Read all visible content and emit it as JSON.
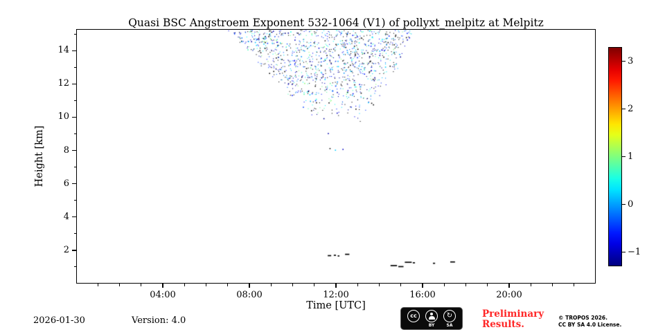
{
  "title": "Quasi BSC Angstroem Exponent 532-1064 (V1) of pollyxt_melpitz at Melpitz",
  "footer": {
    "date": "2026-01-30",
    "version": "Version: 4.0",
    "preliminary_line1": "Preliminary",
    "preliminary_line2": "Results.",
    "copyright_line1": "© TROPOS 2026.",
    "copyright_line2": "CC BY SA 4.0 License.",
    "cc_badge": {
      "cc": "cc",
      "by": "BY",
      "sa": "SA",
      "sa_glyph": "↻"
    }
  },
  "chart_data": {
    "type": "scatter",
    "title": "Quasi BSC Angstroem Exponent 532-1064 (V1) of pollyxt_melpitz at Melpitz",
    "xlabel": "Time [UTC]",
    "ylabel": "Height [km]",
    "xlim": [
      0,
      24
    ],
    "ylim": [
      0,
      15.3
    ],
    "xticks": {
      "values": [
        4,
        8,
        12,
        16,
        20
      ],
      "labels": [
        "04:00",
        "08:00",
        "12:00",
        "16:00",
        "20:00"
      ]
    },
    "x_minor_step": 1,
    "yticks": {
      "values": [
        2,
        4,
        6,
        8,
        10,
        12,
        14
      ],
      "labels": [
        "2",
        "4",
        "6",
        "8",
        "10",
        "12",
        "14"
      ]
    },
    "y_minor_step": 1,
    "grid": false,
    "colorbar": {
      "vmin": -1.3,
      "vmax": 3.3,
      "tick_values": [
        3,
        2,
        1,
        0,
        -1
      ],
      "tick_labels": [
        "3",
        "2",
        "1",
        "0",
        "−1"
      ],
      "colormap": "jet"
    },
    "cloud": {
      "description": "noisy aerosol angstroem-exponent speckle, fan shaped: wide at 13-15.2 km (07:15-15:30 UTC) narrowing to a tip near 9.5 km (11:20-13:10 UTC); values mostly -1.3..1.1 (blue/cyan/green/black specks)",
      "seed": 1337,
      "n": 1150,
      "h_min": 9.5,
      "h_max": 15.25,
      "top_bias": 0.42,
      "left_edge_t": [
        11.3,
        7.25
      ],
      "right_edge_t": [
        13.2,
        15.45
      ],
      "edge_jitter": 0.7,
      "value_min": -1.3,
      "value_max": 1.15,
      "dark_fraction": 0.3
    },
    "extra_points": [
      [
        11.7,
        8.15,
        -1.2
      ],
      [
        11.95,
        8.05,
        0.2
      ],
      [
        12.3,
        8.1,
        -1.0
      ],
      [
        11.62,
        9.05,
        -1.1
      ]
    ],
    "surface_segments": [
      [
        11.62,
        11.78,
        1.68
      ],
      [
        11.9,
        12.0,
        1.7
      ],
      [
        12.08,
        12.16,
        1.66
      ],
      [
        12.42,
        12.62,
        1.76
      ],
      [
        14.52,
        14.82,
        1.08
      ],
      [
        14.88,
        15.12,
        1.02
      ],
      [
        15.18,
        15.5,
        1.28
      ],
      [
        15.55,
        15.65,
        1.25
      ],
      [
        16.48,
        16.58,
        1.22
      ],
      [
        17.28,
        17.5,
        1.3
      ]
    ]
  }
}
